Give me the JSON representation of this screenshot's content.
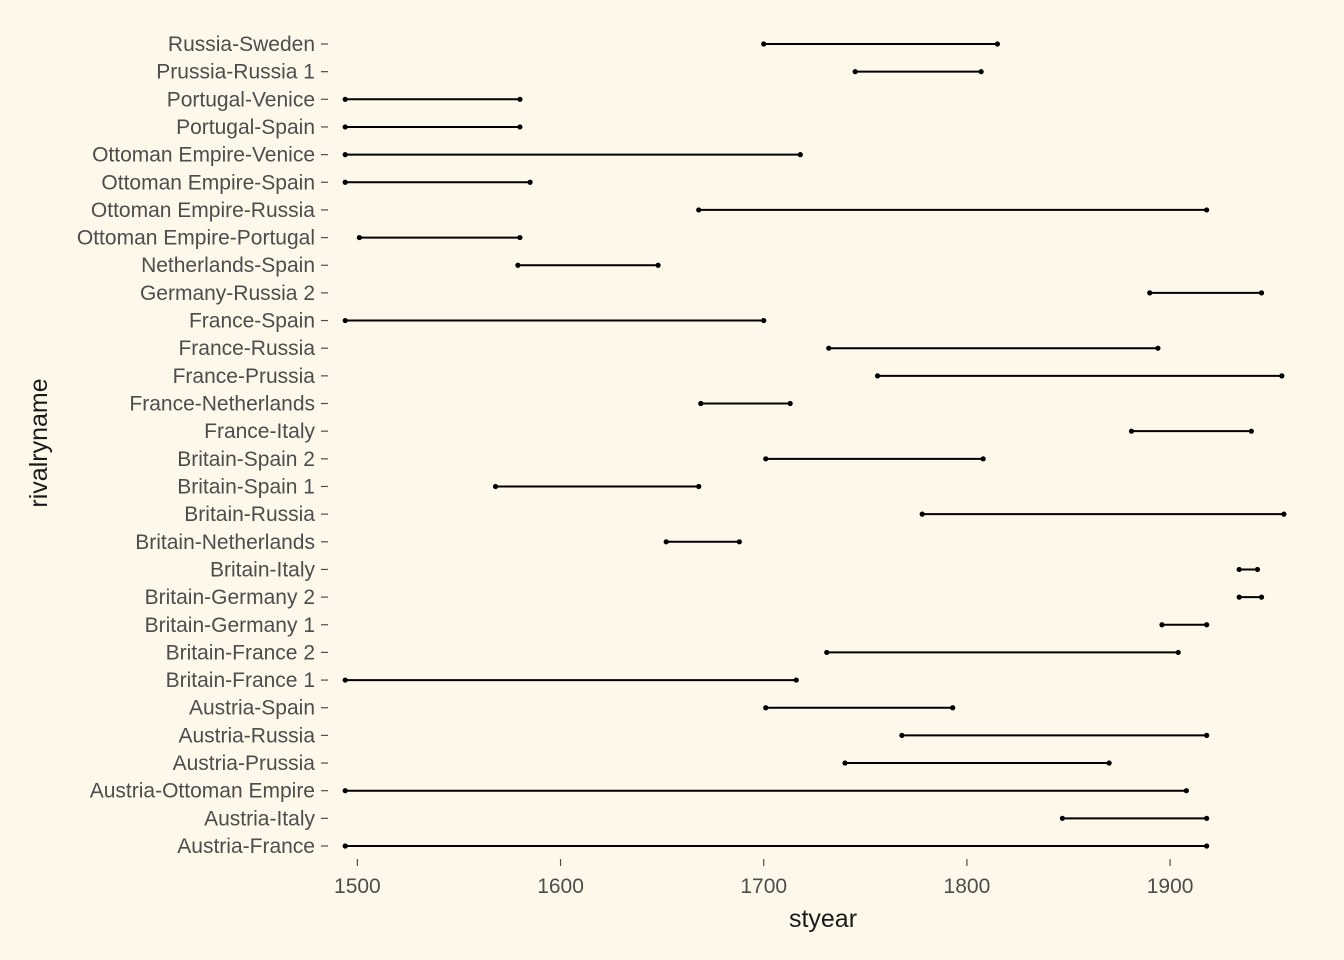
{
  "colors": {
    "background": "#fdf8ea",
    "segment": "#000000",
    "tick_text": "#4d4d4d"
  },
  "chart_data": {
    "type": "dumbbell",
    "xlabel": "styear",
    "ylabel": "rivalryname",
    "xlim": [
      1488,
      1960
    ],
    "x_ticks": [
      1500,
      1600,
      1700,
      1800,
      1900
    ],
    "grid": false,
    "rows": [
      {
        "name": "Austria-France",
        "start": 1494,
        "end": 1918
      },
      {
        "name": "Austria-Italy",
        "start": 1847,
        "end": 1918
      },
      {
        "name": "Austria-Ottoman Empire",
        "start": 1494,
        "end": 1908
      },
      {
        "name": "Austria-Prussia",
        "start": 1740,
        "end": 1870
      },
      {
        "name": "Austria-Russia",
        "start": 1768,
        "end": 1918
      },
      {
        "name": "Austria-Spain",
        "start": 1701,
        "end": 1793
      },
      {
        "name": "Britain-France 1",
        "start": 1494,
        "end": 1716
      },
      {
        "name": "Britain-France 2",
        "start": 1731,
        "end": 1904
      },
      {
        "name": "Britain-Germany 1",
        "start": 1896,
        "end": 1918
      },
      {
        "name": "Britain-Germany 2",
        "start": 1934,
        "end": 1945
      },
      {
        "name": "Britain-Italy",
        "start": 1934,
        "end": 1943
      },
      {
        "name": "Britain-Netherlands",
        "start": 1652,
        "end": 1688
      },
      {
        "name": "Britain-Russia",
        "start": 1778,
        "end": 1956
      },
      {
        "name": "Britain-Spain 1",
        "start": 1568,
        "end": 1668
      },
      {
        "name": "Britain-Spain 2",
        "start": 1701,
        "end": 1808
      },
      {
        "name": "France-Italy",
        "start": 1881,
        "end": 1940
      },
      {
        "name": "France-Netherlands",
        "start": 1669,
        "end": 1713
      },
      {
        "name": "France-Prussia",
        "start": 1756,
        "end": 1955
      },
      {
        "name": "France-Russia",
        "start": 1732,
        "end": 1894
      },
      {
        "name": "France-Spain",
        "start": 1494,
        "end": 1700
      },
      {
        "name": "Germany-Russia 2",
        "start": 1890,
        "end": 1945
      },
      {
        "name": "Netherlands-Spain",
        "start": 1579,
        "end": 1648
      },
      {
        "name": "Ottoman Empire-Portugal",
        "start": 1501,
        "end": 1580
      },
      {
        "name": "Ottoman Empire-Russia",
        "start": 1668,
        "end": 1918
      },
      {
        "name": "Ottoman Empire-Spain",
        "start": 1494,
        "end": 1585
      },
      {
        "name": "Ottoman Empire-Venice",
        "start": 1494,
        "end": 1718
      },
      {
        "name": "Portugal-Spain",
        "start": 1494,
        "end": 1580
      },
      {
        "name": "Portugal-Venice",
        "start": 1494,
        "end": 1580
      },
      {
        "name": "Prussia-Russia 1",
        "start": 1745,
        "end": 1807
      },
      {
        "name": "Russia-Sweden",
        "start": 1700,
        "end": 1815
      }
    ]
  }
}
